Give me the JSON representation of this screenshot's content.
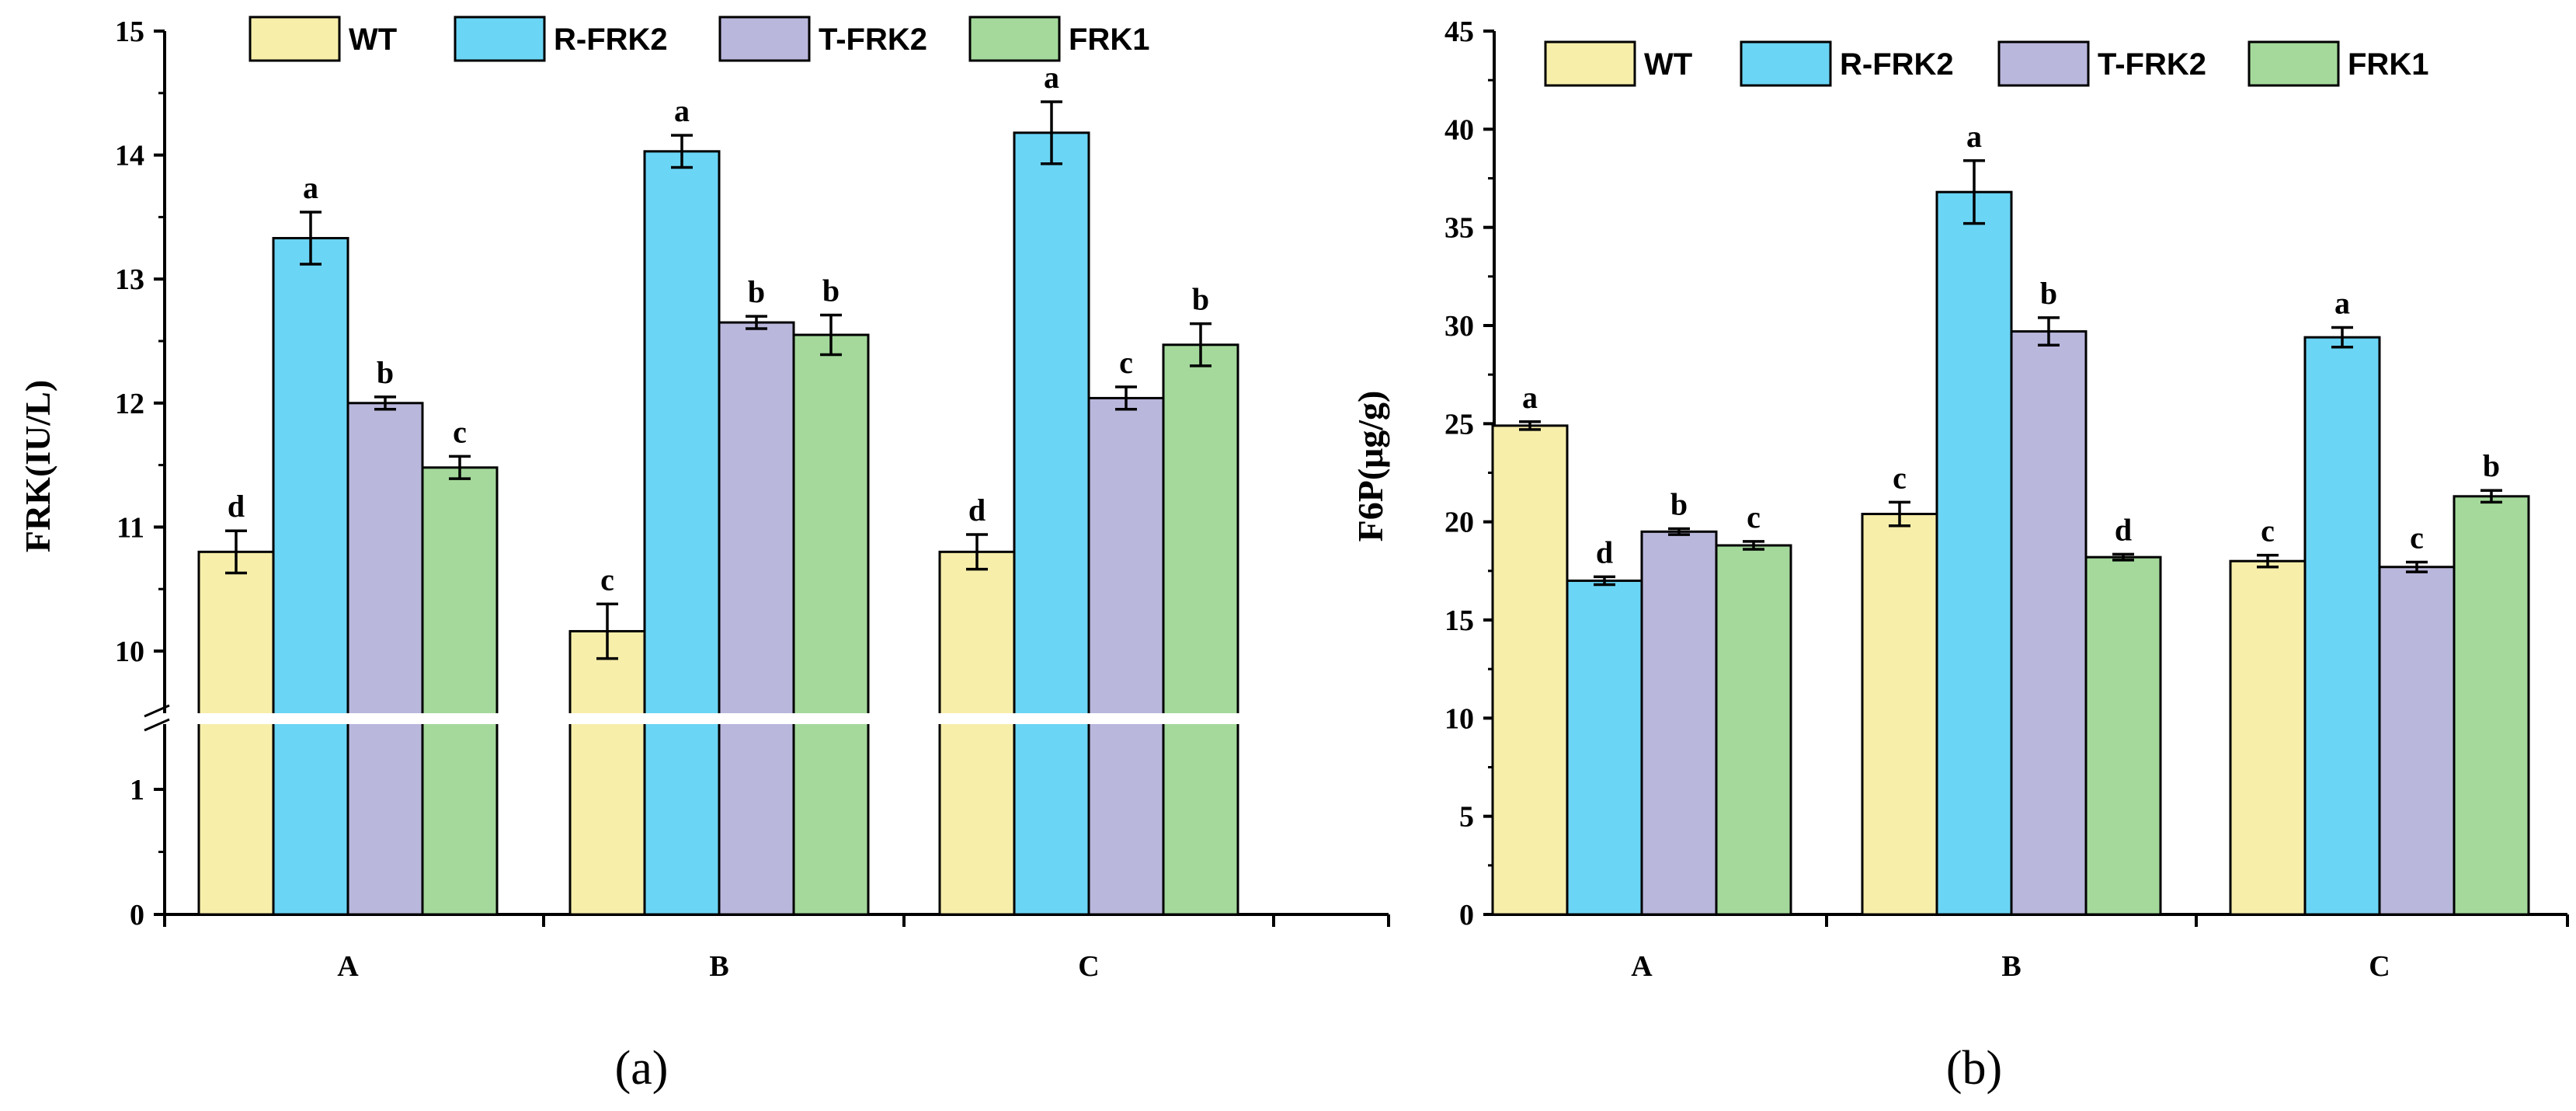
{
  "colors": {
    "WT": "#F7EEAA",
    "R-FRK2": "#6BD5F5",
    "T-FRK2": "#BAB7DD",
    "FRK1": "#A4D99B",
    "stroke": "#000000"
  },
  "chart_data": [
    {
      "type": "bar",
      "panel_label": "(a)",
      "ylabel": "FRK(IU/L)",
      "xlabel": "",
      "categories": [
        "A",
        "B",
        "C"
      ],
      "axis_break": {
        "lower": [
          0,
          1.5
        ],
        "upper": [
          9.5,
          15
        ]
      },
      "yticks": [
        0,
        1,
        10,
        11,
        12,
        13,
        14,
        15
      ],
      "series": [
        {
          "name": "WT",
          "values": [
            10.8,
            10.16,
            10.8
          ],
          "errors": [
            0.17,
            0.22,
            0.14
          ],
          "letters": [
            "d",
            "c",
            "d"
          ]
        },
        {
          "name": "R-FRK2",
          "values": [
            13.33,
            14.03,
            14.18
          ],
          "errors": [
            0.21,
            0.13,
            0.25
          ],
          "letters": [
            "a",
            "a",
            "a"
          ]
        },
        {
          "name": "T-FRK2",
          "values": [
            12.0,
            12.65,
            12.04
          ],
          "errors": [
            0.05,
            0.05,
            0.09
          ],
          "letters": [
            "b",
            "b",
            "c"
          ]
        },
        {
          "name": "FRK1",
          "values": [
            11.48,
            12.55,
            12.47
          ],
          "errors": [
            0.09,
            0.16,
            0.17
          ],
          "letters": [
            "c",
            "b",
            "b"
          ]
        }
      ],
      "legend": [
        "WT",
        "R-FRK2",
        "T-FRK2",
        "FRK1"
      ]
    },
    {
      "type": "bar",
      "panel_label": "(b)",
      "ylabel": "F6P(μg/g)",
      "xlabel": "",
      "categories": [
        "A",
        "B",
        "C"
      ],
      "ylim": [
        0,
        45
      ],
      "yticks": [
        0,
        5,
        10,
        15,
        20,
        25,
        30,
        35,
        40,
        45
      ],
      "series": [
        {
          "name": "WT",
          "values": [
            24.9,
            20.4,
            18.0
          ],
          "errors": [
            0.2,
            0.6,
            0.3
          ],
          "letters": [
            "a",
            "c",
            "c"
          ]
        },
        {
          "name": "R-FRK2",
          "values": [
            17.0,
            36.8,
            29.4
          ],
          "errors": [
            0.2,
            1.6,
            0.5
          ],
          "letters": [
            "d",
            "a",
            "a"
          ]
        },
        {
          "name": "T-FRK2",
          "values": [
            19.5,
            29.7,
            17.7
          ],
          "errors": [
            0.15,
            0.7,
            0.25
          ],
          "letters": [
            "b",
            "b",
            "c"
          ]
        },
        {
          "name": "FRK1",
          "values": [
            18.8,
            18.2,
            21.3
          ],
          "errors": [
            0.2,
            0.15,
            0.3
          ],
          "letters": [
            "c",
            "d",
            "b"
          ]
        }
      ],
      "legend": [
        "WT",
        "R-FRK2",
        "T-FRK2",
        "FRK1"
      ]
    }
  ]
}
